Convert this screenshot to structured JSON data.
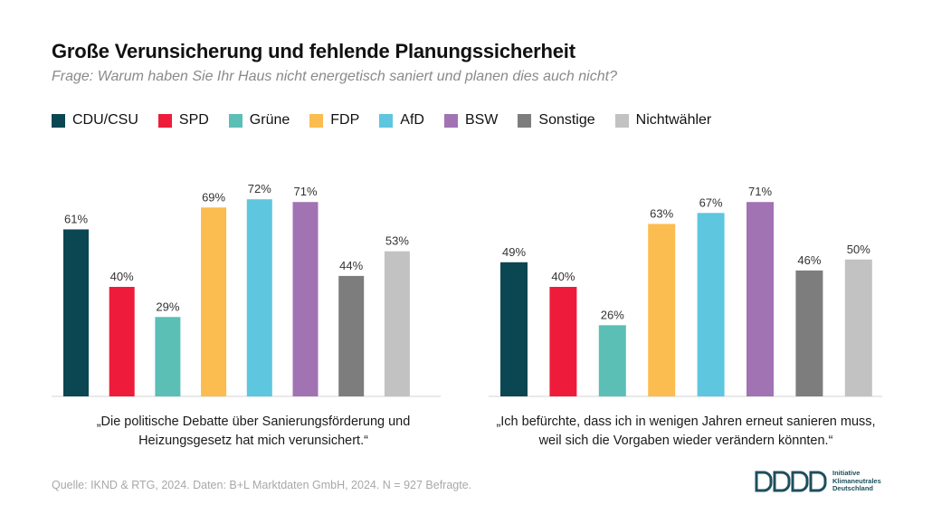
{
  "title": "Große Verunsicherung und fehlende Planungssicherheit",
  "subtitle": "Frage: Warum haben Sie Ihr Haus nicht energetisch saniert und planen dies auch nicht?",
  "legend": [
    {
      "label": "CDU/CSU",
      "color": "#0b4752"
    },
    {
      "label": "SPD",
      "color": "#ee1c3a"
    },
    {
      "label": "Grüne",
      "color": "#5bbfb6"
    },
    {
      "label": "FDP",
      "color": "#fbbc50"
    },
    {
      "label": "AfD",
      "color": "#5ec6df"
    },
    {
      "label": "BSW",
      "color": "#a173b3"
    },
    {
      "label": "Sonstige",
      "color": "#7d7d7d"
    },
    {
      "label": "Nichtwähler",
      "color": "#c2c2c2"
    }
  ],
  "chart_data": [
    {
      "type": "bar",
      "categories": [
        "CDU/CSU",
        "SPD",
        "Grüne",
        "FDP",
        "AfD",
        "BSW",
        "Sonstige",
        "Nichtwähler"
      ],
      "values": [
        61,
        40,
        29,
        69,
        72,
        71,
        44,
        53
      ],
      "labels": [
        "61%",
        "40%",
        "29%",
        "69%",
        "72%",
        "71%",
        "44%",
        "53%"
      ],
      "colors": [
        "#0b4752",
        "#ee1c3a",
        "#5bbfb6",
        "#fbbc50",
        "#5ec6df",
        "#a173b3",
        "#7d7d7d",
        "#c2c2c2"
      ],
      "caption": "„Die politische Debatte über Sanierungsförderung und Heizungsgesetz hat mich verunsichert.“",
      "ylim": [
        0,
        100
      ]
    },
    {
      "type": "bar",
      "categories": [
        "CDU/CSU",
        "SPD",
        "Grüne",
        "FDP",
        "AfD",
        "BSW",
        "Sonstige",
        "Nichtwähler"
      ],
      "values": [
        49,
        40,
        26,
        63,
        67,
        71,
        46,
        50
      ],
      "labels": [
        "49%",
        "40%",
        "26%",
        "63%",
        "67%",
        "71%",
        "46%",
        "50%"
      ],
      "colors": [
        "#0b4752",
        "#ee1c3a",
        "#5bbfb6",
        "#fbbc50",
        "#5ec6df",
        "#a173b3",
        "#7d7d7d",
        "#c2c2c2"
      ],
      "caption": "„Ich befürchte, dass ich in wenigen Jahren erneut sanieren muss, weil sich die Vorgaben wieder verändern könnten.“",
      "ylim": [
        0,
        100
      ]
    }
  ],
  "source": "Quelle: IKND & RTG, 2024. Daten: B+L Marktdaten GmbH, 2024. N = 927 Befragte.",
  "logo": {
    "line1": "Initiative",
    "line2": "Klimaneutrales",
    "line3": "Deutschland",
    "color": "#1d4f5c"
  }
}
